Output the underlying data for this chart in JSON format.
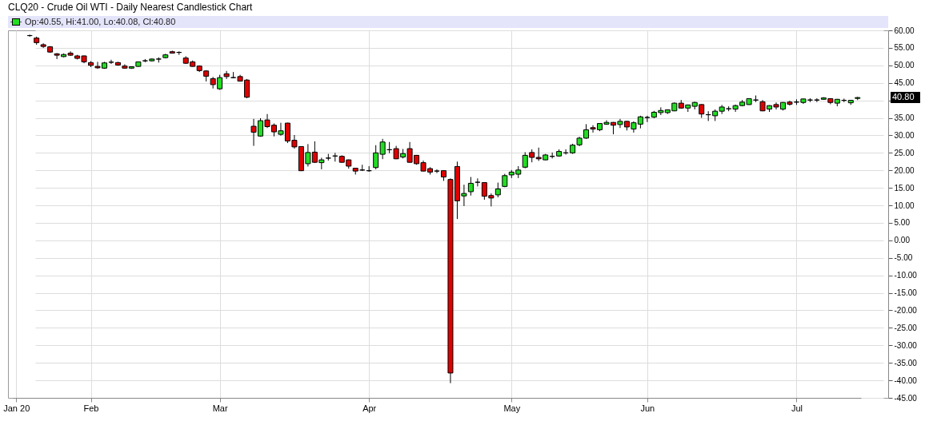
{
  "chart_data": {
    "type": "candlestick",
    "title": "CLQ20 - Crude Oil WTI - Daily Nearest Candlestick Chart",
    "categories": [
      "Jan 20",
      null,
      null,
      null,
      null,
      null,
      null,
      null,
      null,
      null,
      null,
      "Feb",
      null,
      null,
      null,
      null,
      null,
      null,
      null,
      null,
      null,
      null,
      null,
      null,
      null,
      null,
      null,
      null,
      null,
      null,
      "Mar",
      null,
      null,
      null,
      null,
      null,
      null,
      null,
      null,
      null,
      null,
      null,
      null,
      null,
      null,
      null,
      null,
      null,
      null,
      null,
      null,
      null,
      "Apr",
      null,
      null,
      null,
      null,
      null,
      null,
      null,
      null,
      null,
      null,
      null,
      null,
      null,
      null,
      null,
      null,
      null,
      null,
      null,
      null,
      "May",
      null,
      null,
      null,
      null,
      null,
      null,
      null,
      null,
      null,
      null,
      null,
      null,
      null,
      null,
      null,
      null,
      null,
      null,
      null,
      "Jun",
      null,
      null,
      null,
      null,
      null,
      null,
      null,
      null,
      null,
      null,
      null,
      null,
      null,
      null,
      null,
      null,
      null,
      null,
      null,
      null,
      null,
      "Jul",
      null,
      null,
      null,
      null,
      null,
      null,
      null,
      null,
      null
    ],
    "ohlc": [
      null,
      null,
      [
        58.5,
        58.8,
        58.2,
        58.5
      ],
      [
        57.8,
        58.2,
        55.9,
        56.5
      ],
      [
        55.9,
        56.3,
        55.0,
        55.4
      ],
      [
        55.3,
        55.5,
        53.6,
        53.8
      ],
      [
        53.3,
        53.5,
        51.8,
        52.9
      ],
      [
        52.5,
        53.4,
        52.3,
        53.1
      ],
      [
        53.5,
        54.0,
        52.7,
        52.9
      ],
      [
        52.7,
        53.0,
        51.7,
        52.0
      ],
      [
        52.7,
        52.8,
        50.6,
        51.0
      ],
      [
        50.8,
        51.2,
        49.5,
        50.0
      ],
      [
        49.7,
        51.0,
        49.0,
        49.3
      ],
      [
        49.2,
        51.0,
        49.0,
        50.7
      ],
      [
        50.9,
        51.6,
        50.4,
        50.9
      ],
      [
        50.8,
        51.0,
        49.9,
        50.1
      ],
      [
        49.8,
        50.3,
        49.1,
        49.2
      ],
      [
        49.2,
        49.7,
        49.0,
        49.6
      ],
      [
        49.7,
        51.1,
        49.6,
        51.0
      ],
      [
        51.3,
        51.8,
        50.9,
        51.3
      ],
      [
        51.3,
        52.0,
        51.1,
        51.8
      ],
      [
        51.8,
        52.3,
        50.8,
        51.8
      ],
      [
        52.2,
        53.3,
        52.0,
        53.0
      ],
      [
        53.9,
        54.2,
        53.4,
        53.5
      ],
      [
        53.7,
        54.0,
        53.0,
        53.7
      ],
      [
        52.1,
        52.6,
        50.4,
        50.6
      ],
      [
        51.0,
        51.4,
        49.6,
        49.7
      ],
      [
        49.8,
        50.0,
        48.1,
        48.5
      ],
      [
        48.4,
        48.6,
        45.4,
        46.9
      ],
      [
        46.2,
        46.7,
        43.4,
        44.5
      ],
      [
        43.3,
        47.3,
        43.0,
        46.5
      ],
      [
        47.6,
        48.4,
        46.1,
        46.8
      ],
      [
        46.5,
        48.1,
        46.3,
        46.5
      ],
      [
        46.8,
        47.3,
        45.4,
        45.5
      ],
      [
        45.8,
        46.1,
        40.6,
        40.9
      ],
      [
        32.6,
        34.7,
        27.0,
        30.9
      ],
      [
        29.8,
        34.9,
        29.6,
        34.2
      ],
      [
        34.4,
        36.1,
        32.1,
        32.5
      ],
      [
        32.9,
        33.4,
        29.7,
        31.0
      ],
      [
        30.3,
        33.6,
        29.9,
        31.3
      ],
      [
        33.5,
        33.6,
        27.8,
        28.4
      ],
      [
        28.6,
        30.1,
        26.2,
        26.7
      ],
      [
        26.8,
        26.9,
        19.8,
        19.9
      ],
      [
        21.9,
        27.5,
        21.1,
        25.1
      ],
      [
        25.2,
        28.3,
        22.1,
        22.3
      ],
      [
        22.2,
        23.6,
        20.3,
        23.0
      ],
      [
        23.5,
        24.7,
        22.8,
        23.5
      ],
      [
        24.1,
        25.0,
        22.5,
        24.1
      ],
      [
        24.0,
        24.3,
        22.2,
        22.3
      ],
      [
        23.0,
        23.1,
        20.5,
        21.2
      ],
      [
        20.6,
        20.7,
        18.8,
        19.8
      ],
      [
        20.1,
        21.6,
        19.8,
        20.1
      ],
      [
        19.9,
        21.2,
        19.6,
        19.9
      ],
      [
        20.8,
        27.2,
        20.3,
        25.0
      ],
      [
        24.6,
        29.0,
        23.2,
        28.1
      ],
      [
        25.9,
        28.1,
        24.9,
        25.9
      ],
      [
        26.2,
        27.0,
        23.2,
        23.3
      ],
      [
        23.8,
        26.1,
        23.4,
        24.8
      ],
      [
        26.2,
        28.1,
        22.2,
        22.3
      ],
      [
        24.3,
        24.4,
        21.6,
        21.9
      ],
      [
        22.2,
        22.8,
        19.7,
        19.8
      ],
      [
        20.5,
        20.9,
        18.8,
        19.5
      ],
      [
        19.8,
        20.3,
        19.2,
        19.8
      ],
      [
        19.9,
        20.0,
        17.0,
        18.1
      ],
      [
        17.4,
        17.7,
        -40.8,
        -37.9
      ],
      [
        21.1,
        22.5,
        6.1,
        11.3
      ],
      [
        12.7,
        15.9,
        9.8,
        13.4
      ],
      [
        13.9,
        18.1,
        12.8,
        16.3
      ],
      [
        16.6,
        17.7,
        15.4,
        16.6
      ],
      [
        16.5,
        16.6,
        11.6,
        12.6
      ],
      [
        12.8,
        13.4,
        9.7,
        12.1
      ],
      [
        13.0,
        16.5,
        12.3,
        14.7
      ],
      [
        15.4,
        19.0,
        15.2,
        18.5
      ],
      [
        18.7,
        20.1,
        17.8,
        19.5
      ],
      [
        18.9,
        21.2,
        17.8,
        20.1
      ],
      [
        20.9,
        25.2,
        20.6,
        24.3
      ],
      [
        25.1,
        26.0,
        22.3,
        23.7
      ],
      [
        23.7,
        26.5,
        22.7,
        23.3
      ],
      [
        23.0,
        24.7,
        22.9,
        24.4
      ],
      [
        24.0,
        25.1,
        23.4,
        24.0
      ],
      [
        24.1,
        26.0,
        23.9,
        25.4
      ],
      [
        25.0,
        26.0,
        24.5,
        25.0
      ],
      [
        25.0,
        27.6,
        24.7,
        27.2
      ],
      [
        27.3,
        29.6,
        26.9,
        29.2
      ],
      [
        29.2,
        33.2,
        29.0,
        31.6
      ],
      [
        32.2,
        32.9,
        30.8,
        31.8
      ],
      [
        31.6,
        33.5,
        31.2,
        33.4
      ],
      [
        33.2,
        34.3,
        33.0,
        33.7
      ],
      [
        33.7,
        33.8,
        30.3,
        32.9
      ],
      [
        33.1,
        34.7,
        32.1,
        34.0
      ],
      [
        34.0,
        34.1,
        31.4,
        32.4
      ],
      [
        31.8,
        34.0,
        30.8,
        33.6
      ],
      [
        33.2,
        35.6,
        32.0,
        35.3
      ],
      [
        35.1,
        35.6,
        33.8,
        35.1
      ],
      [
        35.2,
        37.0,
        34.9,
        36.6
      ],
      [
        36.5,
        38.0,
        35.8,
        37.1
      ],
      [
        36.5,
        37.4,
        36.1,
        37.3
      ],
      [
        37.0,
        39.4,
        36.9,
        39.2
      ],
      [
        39.2,
        40.1,
        37.6,
        37.8
      ],
      [
        37.8,
        38.8,
        36.7,
        38.7
      ],
      [
        38.3,
        39.6,
        37.4,
        39.4
      ],
      [
        38.8,
        38.9,
        35.0,
        36.1
      ],
      [
        35.9,
        36.9,
        34.1,
        35.9
      ],
      [
        35.6,
        37.4,
        34.1,
        36.9
      ],
      [
        36.9,
        38.7,
        36.1,
        38.1
      ],
      [
        37.6,
        38.3,
        36.9,
        37.6
      ],
      [
        37.5,
        38.8,
        36.7,
        38.5
      ],
      [
        38.5,
        40.1,
        38.3,
        39.5
      ],
      [
        38.8,
        40.6,
        38.7,
        40.5
      ],
      [
        40.1,
        41.4,
        39.5,
        40.1
      ],
      [
        39.6,
        40.1,
        36.9,
        37.0
      ],
      [
        37.5,
        38.6,
        36.7,
        38.5
      ],
      [
        38.8,
        39.4,
        37.4,
        38.1
      ],
      [
        37.5,
        39.5,
        37.1,
        39.4
      ],
      [
        39.5,
        39.9,
        38.5,
        38.9
      ],
      [
        39.5,
        40.3,
        38.7,
        39.5
      ],
      [
        39.4,
        40.5,
        39.0,
        40.4
      ],
      [
        40.1,
        40.6,
        39.5,
        40.1
      ],
      [
        40.1,
        40.6,
        39.5,
        40.1
      ],
      [
        40.3,
        40.9,
        40.2,
        40.7
      ],
      [
        40.5,
        40.6,
        38.9,
        39.4
      ],
      [
        39.2,
        40.4,
        38.3,
        40.3
      ],
      [
        40.0,
        40.5,
        39.5,
        40.0
      ],
      [
        39.3,
        40.1,
        38.7,
        40.0
      ],
      [
        40.55,
        41.0,
        40.08,
        40.8
      ]
    ],
    "colors": [
      null,
      null,
      "#000000",
      "#e00000",
      "#e00000",
      "#e00000",
      "#e00000",
      "#22dd22",
      "#e00000",
      "#e00000",
      "#e00000",
      "#e00000",
      "#e00000",
      "#22dd22",
      "#000000",
      "#e00000",
      "#e00000",
      "#22dd22",
      "#22dd22",
      "#000000",
      "#22dd22",
      "#000000",
      "#22dd22",
      "#e00000",
      "#000000",
      "#e00000",
      "#e00000",
      "#e00000",
      "#e00000",
      "#e00000",
      "#22dd22",
      "#e00000",
      "#000000",
      "#e00000",
      "#e00000",
      "#e00000",
      "#22dd22",
      "#e00000",
      "#e00000",
      "#22dd22",
      "#e00000",
      "#e00000",
      "#e00000",
      "#22dd22",
      "#e00000",
      "#22dd22",
      "#000000",
      "#000000",
      "#e00000",
      "#e00000",
      "#e00000",
      "#000000",
      "#000000",
      "#22dd22",
      "#22dd22",
      "#000000",
      "#e00000",
      "#22dd22",
      "#e00000",
      "#e00000",
      "#e00000",
      "#e00000",
      "#000000",
      "#e00000",
      "#e00000",
      "#e00000",
      "#22dd22",
      "#22dd22",
      "#000000",
      "#e00000",
      "#e00000",
      "#22dd22",
      "#22dd22",
      "#22dd22",
      "#22dd22",
      "#22dd22",
      "#e00000",
      "#e00000",
      "#22dd22",
      "#000000",
      "#22dd22",
      "#000000",
      "#22dd22",
      "#22dd22",
      "#22dd22",
      "#e00000",
      "#22dd22",
      "#22dd22",
      "#e00000",
      "#22dd22",
      "#e00000",
      "#22dd22",
      "#22dd22",
      "#000000",
      "#22dd22",
      "#22dd22",
      "#22dd22",
      "#22dd22",
      "#e00000",
      "#22dd22",
      "#22dd22",
      "#e00000",
      "#000000",
      "#22dd22",
      "#22dd22",
      "#000000",
      "#22dd22",
      "#22dd22",
      "#22dd22",
      "#000000",
      "#e00000",
      "#22dd22",
      "#e00000",
      "#22dd22",
      "#e00000",
      "#000000",
      "#22dd22",
      "#000000",
      "#000000",
      "#22dd22",
      "#e00000",
      "#22dd22",
      "#000000",
      "#22dd22",
      "#22dd22"
    ],
    "ylim": [
      -45,
      60
    ],
    "yticks": [
      {
        "value": -45,
        "label": "-45.00"
      },
      {
        "value": -40,
        "label": "-40.00"
      },
      {
        "value": -35,
        "label": "-35.00"
      },
      {
        "value": -30,
        "label": "-30.00"
      },
      {
        "value": -25,
        "label": "-25.00"
      },
      {
        "value": -20,
        "label": "-20.00"
      },
      {
        "value": -15,
        "label": "-15.00"
      },
      {
        "value": -10,
        "label": "-10.00"
      },
      {
        "value": -5,
        "label": "-5.00"
      },
      {
        "value": 0,
        "label": "0.00"
      },
      {
        "value": 5,
        "label": "5.00"
      },
      {
        "value": 10,
        "label": "10.00"
      },
      {
        "value": 15,
        "label": "15.00"
      },
      {
        "value": 20,
        "label": "20.00"
      },
      {
        "value": 25,
        "label": "25.00"
      },
      {
        "value": 30,
        "label": "30.00"
      },
      {
        "value": 35,
        "label": "35.00"
      },
      {
        "value": 40,
        "label": null
      },
      {
        "value": 45,
        "label": "45.00"
      },
      {
        "value": 50,
        "label": "50.00"
      },
      {
        "value": 55,
        "label": "55.00"
      },
      {
        "value": 60,
        "label": "60.00"
      }
    ],
    "grid": true,
    "annotations": [
      "Op:40.55, Hi:41.00, Lo:40.08, Cl:40.80",
      "40.80"
    ]
  }
}
